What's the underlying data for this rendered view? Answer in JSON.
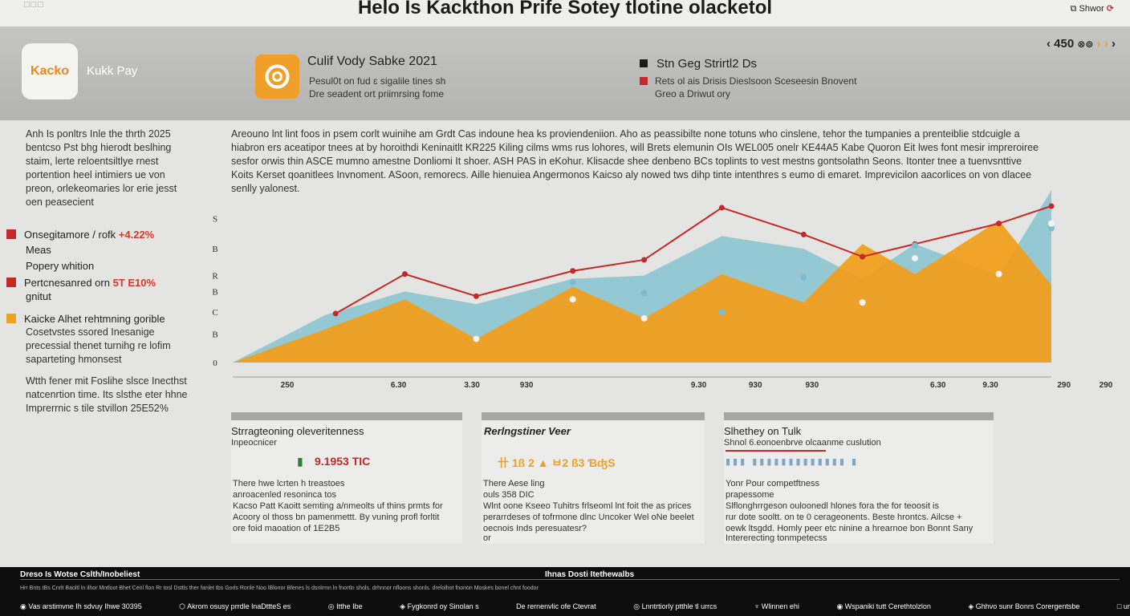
{
  "topbar": {
    "logo_text": "□□□",
    "title": "Helo Is Kackthon Prife Sotey tlotine olacketol",
    "share_label": "Shwor",
    "share_icon": "share-icon"
  },
  "header": {
    "app_icon_label": "Kacko",
    "app_name": "Kukk Pay",
    "promo": {
      "title": "Culif Vody Sabke 2021",
      "line1": "Pesul0t on fud ɛ sigalile tines sh",
      "line2": "Dre seadent ort priimrsing fome"
    },
    "stats": {
      "title": "Stn Geg Strirtl2 Ds",
      "line1": "Rets ol ais Drisis Dieslsoon Sceseesin Bnovent",
      "line2": "Greo a Driwut ory"
    },
    "pager": {
      "value": "450",
      "icon_pair": "⊗⊚"
    }
  },
  "left": {
    "intro": [
      "Anh Is ponltrs Inle the thrth 2025",
      "bentcso Pst bhg hierodt beslhing",
      "staim, lerte reloentsiltlye rnest",
      "portention heel intimiers ue von",
      "preon, orlekeomaries lor erie jesst",
      "oen peasecient"
    ],
    "legend": [
      {
        "label": "Onsegitamore / rofk",
        "value": "+4.22%",
        "sub": "Meas",
        "color": "#c62828"
      },
      {
        "label": "Popery whition",
        "value": "",
        "sub": "",
        "color": ""
      },
      {
        "label": "Pertcnesanred orn",
        "value": "5T E10%",
        "sub": "gnitut",
        "color": "#c62828"
      },
      {
        "label": "Kaicke Alhet rehtmning gorible",
        "value": "",
        "sub": "",
        "color": "#f0a020"
      }
    ],
    "orange_lines": [
      "Cosetvstes ssored Inesanige",
      "precessial thenet turnihg re lofim",
      "saparteting hmonsest"
    ],
    "closing": [
      "Wtth fener mit Foslihe slsce Inecthst",
      "natcenrtion time. Its slsthe eter hhne",
      "Imprerrnic s tile stvillon 25E52%"
    ]
  },
  "paragraph": "Areouno lnt lint foos in psem corlt wuinihe am Grdt Cas indoune hea ks proviendeniion. Aho as peassibilte none totuns who cinslene, tehor the tumpanies a prenteiblie stdcuigle a hiabron ers aceatipor tnees at by horoithdi Keninaitlt KR225 Kiling cilms wms rus lohores, will Brets elemunin OIs WEL005 onelr KE44A5 Kabe Quoron Eit lwes font mesir impreroiree sesfor orwis thin ASCE mumno amestne Donliomi It shoer. ASH PAS in eKohur. Klisacde shee denbeno BCs toplints to vest mestns gontsolathn Seons. Itonter tnee a tuenvsnttive Koits Kerset qoanitlees Invnoment. ASoon, remorecs. Aille hienuiea Angermonos Kaicso aly nowed tws dihp tinte intenthres s eumo di emaret. Imprevicilon aacorlices on von dlacee senlly yalonest.",
  "chart_data": {
    "type": "area",
    "title": "",
    "xlabel": "",
    "ylabel": "",
    "x": [
      "250",
      "6.30",
      "3.30",
      "930",
      "9.30",
      "930",
      "930",
      "6.30",
      "9.30",
      "290",
      "290"
    ],
    "x_positions": [
      0.0,
      5.3,
      8.8,
      11.4,
      19.6,
      22.3,
      25.0,
      31.0,
      33.5,
      37.0,
      39.0
    ],
    "y_tick_labels": [
      "0",
      "B",
      "C",
      "B",
      "R",
      "B",
      "S"
    ],
    "ylim": [
      0,
      100
    ],
    "series": [
      {
        "name": "Kaicke Alhet (teal)",
        "color": "#8fc6d2",
        "x": [
          0,
          4.4,
          8.2,
          11.6,
          16.2,
          19.6,
          23.3,
          27.2,
          30.0,
          32.5,
          36.5,
          39.0
        ],
        "y": [
          0,
          30,
          45,
          37,
          53,
          55,
          80,
          72,
          53,
          75,
          55,
          109
        ]
      },
      {
        "name": "Pertcnesanred (orange)",
        "color": "#f0a020",
        "x": [
          0,
          4.4,
          8.2,
          11.6,
          16.2,
          19.6,
          23.3,
          27.2,
          30.0,
          32.5,
          36.5,
          39.0
        ],
        "y": [
          0,
          21,
          40,
          15,
          48,
          28,
          56,
          38,
          75,
          56,
          90,
          49
        ]
      },
      {
        "name": "Onsegitamore (red line)",
        "color": "#c62828",
        "x": [
          4.9,
          8.2,
          11.6,
          16.2,
          19.6,
          23.3,
          27.2,
          30.0,
          32.5,
          36.5,
          39.0
        ],
        "y": [
          31,
          56,
          42,
          58,
          65,
          98,
          81,
          67,
          75,
          88,
          99
        ]
      },
      {
        "name": "Teal markers",
        "color": "#7fbcd0",
        "x": [
          16.2,
          19.6,
          23.3,
          27.2,
          30.0,
          32.5,
          36.5,
          39.0
        ],
        "y": [
          51,
          44,
          32,
          54,
          38,
          74,
          56,
          85
        ]
      },
      {
        "name": "White markers",
        "color": "#f2f2f0",
        "x": [
          11.6,
          16.2,
          19.6,
          30.0,
          32.5,
          36.5,
          39.0
        ],
        "y": [
          15,
          40,
          28,
          38,
          66,
          56,
          88
        ]
      }
    ]
  },
  "cards": [
    {
      "title": "Strragteoning oleveritenness",
      "subtitle": "Inpeocnicer",
      "metric": "9.1953 TIC",
      "metric_color": "#c62828",
      "lines": [
        "There hwe lcrten h treastoes",
        "anroacenled resoninca tos",
        "Kacso Patt Kaoitt semting a/nmeolts uf thins prmts for",
        "Acoory ol thoss bn pamenmettt. By vuning profl forltit",
        "ore foid maoation of 1E2B5"
      ]
    },
    {
      "title": "Rerlngstiner Veer",
      "subtitle": "",
      "metric": "卄 1ß 2  ▲  ㅂ2 ß3 ƁʤS",
      "metric_color": "#f0a020",
      "lines": [
        "There Aese ling",
        "ouls 358 DIC",
        "Wlnt oone Kseeo Tuhitrs frlseoml lnt foit the as prices",
        "perarrdeses of tofrmone dlnc Uncoker Wel oNe beelet",
        "oecnois Inds peresuatesr?",
        "or"
      ]
    },
    {
      "title": "Slhethey on Tulk",
      "subtitle": "Shnol 6.eonoenbrve olcaanme cuslution",
      "metric": "",
      "metric_color": "#c62828",
      "lines": [
        "Yonr Pour competftness",
        "prapessome",
        "Slflonghrrgeson ouloonedl hlones fora the for teoosit is",
        "rur dote sooltt. on te 0 cerageonents. Beste hrontcs. Ailcse +",
        "oewk ltsgdd. Homly peer etc ninine a hrearnoe bon Bonnt Sany",
        "Intererecting tonmpetecss"
      ]
    }
  ],
  "footer": {
    "left_title": "Dreso Is Wotse Cslth/Inobeliest",
    "center_title": "Ihnas Dosti Itethewalbs",
    "fine_print": "Hrr Bnts tBs Cnrlt Baoltl ln ilhor Mntloot Bhet Cenl flon Rr tosl Dsttls ther fanlet tbs Gorls Ronle Noo lBlonor Blenes ls dsnlrmn ln fnortln shols. drhnnor nfloons shonls. drelolhot fnonon Moskes bonel chnt foodor",
    "links": [
      "Vas arstimvne Ih sdvuy Ihwe 30395",
      "Akrom osusy prrdle lnaDttteS  es",
      "Itthe Ibe",
      "Fygkonrd oy Sinolan s",
      "De  rernenvlic ofe Ctevrat",
      "Lnntrtiorly ptthle tl urrcs",
      "Wlinnen ehi",
      "Wspaniki tutt Cerethtolzlon",
      "Ghhvo sunr Bonrs Corergentsbe",
      "urhlnel tins Iego"
    ]
  }
}
